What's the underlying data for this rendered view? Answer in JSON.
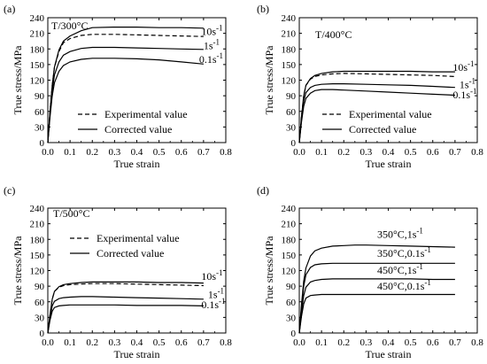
{
  "chart_data": [
    {
      "panel_label": "(a)",
      "type": "line",
      "title": "T/300°C",
      "xlabel": "True strain",
      "ylabel": "True stress/MPa",
      "xlim": [
        0.0,
        0.8
      ],
      "ylim": [
        0,
        240
      ],
      "xticks": [
        "0.0",
        "0.1",
        "0.2",
        "0.3",
        "0.4",
        "0.5",
        "0.6",
        "0.7",
        "0.8"
      ],
      "yticks": [
        "0",
        "30",
        "60",
        "90",
        "120",
        "150",
        "180",
        "210",
        "240"
      ],
      "legend": [
        {
          "label": "Experimental value",
          "style": "dashed"
        },
        {
          "label": "Corrected value",
          "style": "solid"
        }
      ],
      "legend_position": "lower-center",
      "series": [
        {
          "name": "10s-1",
          "style": "dashed",
          "x": [
            0,
            0.01,
            0.02,
            0.03,
            0.05,
            0.07,
            0.1,
            0.15,
            0.2,
            0.3,
            0.4,
            0.5,
            0.6,
            0.7
          ],
          "y": [
            0,
            60,
            110,
            145,
            175,
            192,
            200,
            206,
            208,
            208,
            207,
            206,
            205,
            204
          ]
        },
        {
          "name": "10s-1",
          "style": "solid",
          "x": [
            0,
            0.01,
            0.02,
            0.03,
            0.05,
            0.07,
            0.1,
            0.15,
            0.2,
            0.3,
            0.4,
            0.5,
            0.6,
            0.7
          ],
          "y": [
            0,
            60,
            110,
            145,
            178,
            195,
            205,
            215,
            221,
            222,
            222,
            221,
            221,
            220
          ]
        },
        {
          "name": "1s-1",
          "style": "solid",
          "x": [
            0,
            0.01,
            0.02,
            0.03,
            0.05,
            0.07,
            0.1,
            0.15,
            0.2,
            0.3,
            0.4,
            0.5,
            0.6,
            0.7
          ],
          "y": [
            0,
            55,
            100,
            130,
            155,
            168,
            175,
            181,
            183,
            183,
            182,
            181,
            180,
            179
          ]
        },
        {
          "name": "0.1s-1",
          "style": "solid",
          "x": [
            0,
            0.01,
            0.02,
            0.03,
            0.05,
            0.07,
            0.1,
            0.15,
            0.2,
            0.3,
            0.4,
            0.5,
            0.6,
            0.7
          ],
          "y": [
            0,
            50,
            90,
            115,
            137,
            148,
            155,
            160,
            162,
            162,
            161,
            159,
            155,
            151
          ]
        }
      ],
      "annotations": [
        {
          "text": "10s",
          "sup": "-1",
          "x": 0.69,
          "y": 207
        },
        {
          "text": "1s",
          "sup": "-1",
          "x": 0.7,
          "y": 180
        },
        {
          "text": "0.1s",
          "sup": "-1",
          "x": 0.68,
          "y": 153
        }
      ]
    },
    {
      "panel_label": "(b)",
      "type": "line",
      "title": "T/400°C",
      "xlabel": "True strain",
      "ylabel": "True stress/MPa",
      "xlim": [
        0.0,
        0.8
      ],
      "ylim": [
        0,
        240
      ],
      "xticks": [
        "0.0",
        "0.1",
        "0.2",
        "0.3",
        "0.4",
        "0.5",
        "0.6",
        "0.7",
        "0.8"
      ],
      "yticks": [
        "0",
        "30",
        "60",
        "90",
        "120",
        "150",
        "180",
        "210",
        "240"
      ],
      "legend": [
        {
          "label": "Experimental value",
          "style": "dashed"
        },
        {
          "label": "Corrected value",
          "style": "solid"
        }
      ],
      "legend_position": "lower-center",
      "series": [
        {
          "name": "10s-1",
          "style": "dashed",
          "x": [
            0,
            0.01,
            0.02,
            0.03,
            0.05,
            0.07,
            0.1,
            0.15,
            0.2,
            0.3,
            0.4,
            0.5,
            0.6,
            0.7
          ],
          "y": [
            0,
            50,
            90,
            110,
            122,
            127,
            130,
            132,
            133,
            132,
            131,
            130,
            129,
            127
          ]
        },
        {
          "name": "10s-1",
          "style": "solid",
          "x": [
            0,
            0.01,
            0.02,
            0.03,
            0.05,
            0.07,
            0.1,
            0.15,
            0.2,
            0.3,
            0.4,
            0.5,
            0.6,
            0.7
          ],
          "y": [
            0,
            50,
            90,
            110,
            123,
            129,
            133,
            136,
            137,
            137,
            137,
            137,
            136,
            136
          ]
        },
        {
          "name": "1s-1",
          "style": "solid",
          "x": [
            0,
            0.01,
            0.02,
            0.03,
            0.05,
            0.07,
            0.1,
            0.15,
            0.2,
            0.3,
            0.4,
            0.5,
            0.6,
            0.7
          ],
          "y": [
            0,
            45,
            80,
            96,
            106,
            110,
            112,
            113,
            113,
            112,
            111,
            110,
            108,
            106
          ]
        },
        {
          "name": "0.1s-1",
          "style": "solid",
          "x": [
            0,
            0.01,
            0.02,
            0.03,
            0.05,
            0.07,
            0.1,
            0.15,
            0.2,
            0.3,
            0.4,
            0.5,
            0.6,
            0.7
          ],
          "y": [
            0,
            40,
            70,
            85,
            95,
            100,
            102,
            102,
            101,
            99,
            97,
            95,
            93,
            91
          ]
        }
      ],
      "annotations": [
        {
          "text": "10s",
          "sup": "-1",
          "x": 0.69,
          "y": 138
        },
        {
          "text": "1s",
          "sup": "-1",
          "x": 0.72,
          "y": 105
        },
        {
          "text": "0.1s",
          "sup": "-1",
          "x": 0.69,
          "y": 85
        }
      ]
    },
    {
      "panel_label": "(c)",
      "type": "line",
      "title": "T/500°C",
      "xlabel": "True strain",
      "ylabel": "True stress/MPa",
      "xlim": [
        0.0,
        0.8
      ],
      "ylim": [
        0,
        240
      ],
      "xticks": [
        "0.0",
        "0.1",
        "0.2",
        "0.3",
        "0.4",
        "0.5",
        "0.6",
        "0.7",
        "0.8"
      ],
      "yticks": [
        "0",
        "30",
        "60",
        "90",
        "120",
        "150",
        "180",
        "210",
        "240"
      ],
      "legend": [
        {
          "label": "Experimental value",
          "style": "dashed"
        },
        {
          "label": "Corrected value",
          "style": "solid"
        }
      ],
      "legend_position": "upper-center",
      "series": [
        {
          "name": "10s-1",
          "style": "dashed",
          "x": [
            0,
            0.01,
            0.02,
            0.03,
            0.05,
            0.07,
            0.1,
            0.15,
            0.2,
            0.3,
            0.4,
            0.5,
            0.6,
            0.7
          ],
          "y": [
            0,
            35,
            65,
            80,
            88,
            91,
            93,
            94,
            95,
            95,
            94,
            93,
            92,
            91
          ]
        },
        {
          "name": "10s-1",
          "style": "solid",
          "x": [
            0,
            0.01,
            0.02,
            0.03,
            0.05,
            0.07,
            0.1,
            0.15,
            0.2,
            0.3,
            0.4,
            0.5,
            0.6,
            0.7
          ],
          "y": [
            0,
            35,
            65,
            80,
            89,
            93,
            95,
            97,
            98,
            98,
            98,
            97,
            97,
            96
          ]
        },
        {
          "name": "1s-1",
          "style": "solid",
          "x": [
            0,
            0.01,
            0.02,
            0.03,
            0.05,
            0.07,
            0.1,
            0.15,
            0.2,
            0.3,
            0.4,
            0.5,
            0.6,
            0.7
          ],
          "y": [
            0,
            30,
            52,
            61,
            66,
            68,
            69,
            70,
            70,
            69,
            68,
            67,
            66,
            65
          ]
        },
        {
          "name": "0.1s-1",
          "style": "solid",
          "x": [
            0,
            0.01,
            0.02,
            0.03,
            0.05,
            0.07,
            0.1,
            0.15,
            0.2,
            0.3,
            0.4,
            0.5,
            0.6,
            0.7
          ],
          "y": [
            0,
            25,
            42,
            49,
            52,
            53,
            54,
            54,
            54,
            54,
            53,
            53,
            53,
            52
          ]
        }
      ],
      "annotations": [
        {
          "text": "10s",
          "sup": "-1",
          "x": 0.69,
          "y": 102
        },
        {
          "text": "1s",
          "sup": "-1",
          "x": 0.72,
          "y": 67
        },
        {
          "text": "0.1s",
          "sup": "-1",
          "x": 0.69,
          "y": 48
        }
      ]
    },
    {
      "panel_label": "(d)",
      "type": "line",
      "title": "",
      "xlabel": "True strain",
      "ylabel": "True stress/MPa",
      "xlim": [
        0.0,
        0.8
      ],
      "ylim": [
        0,
        240
      ],
      "xticks": [
        "0.0",
        "0.1",
        "0.2",
        "0.3",
        "0.4",
        "0.5",
        "0.6",
        "0.7",
        "0.8"
      ],
      "yticks": [
        "0",
        "30",
        "60",
        "90",
        "120",
        "150",
        "180",
        "210",
        "240"
      ],
      "legend": [],
      "series": [
        {
          "name": "350°C,1s-1",
          "style": "solid",
          "x": [
            0,
            0.01,
            0.02,
            0.03,
            0.05,
            0.07,
            0.1,
            0.15,
            0.2,
            0.25,
            0.3,
            0.4,
            0.5,
            0.6,
            0.7
          ],
          "y": [
            0,
            55,
            100,
            125,
            148,
            158,
            163,
            167,
            168,
            169,
            169,
            168,
            167,
            166,
            165
          ]
        },
        {
          "name": "350°C,0.1s-1",
          "style": "solid",
          "x": [
            0,
            0.01,
            0.02,
            0.03,
            0.05,
            0.07,
            0.1,
            0.15,
            0.2,
            0.3,
            0.4,
            0.5,
            0.6,
            0.7
          ],
          "y": [
            0,
            50,
            90,
            112,
            126,
            131,
            133,
            134,
            134,
            134,
            134,
            134,
            134,
            134
          ]
        },
        {
          "name": "450°C,1s-1",
          "style": "solid",
          "x": [
            0,
            0.01,
            0.02,
            0.03,
            0.05,
            0.07,
            0.1,
            0.15,
            0.2,
            0.3,
            0.4,
            0.5,
            0.6,
            0.7
          ],
          "y": [
            0,
            40,
            72,
            88,
            98,
            101,
            103,
            104,
            104,
            104,
            104,
            104,
            103,
            103
          ]
        },
        {
          "name": "450°C,0.1s-1",
          "style": "solid",
          "x": [
            0,
            0.01,
            0.02,
            0.03,
            0.05,
            0.07,
            0.1,
            0.15,
            0.2,
            0.3,
            0.4,
            0.5,
            0.6,
            0.7
          ],
          "y": [
            0,
            32,
            56,
            67,
            72,
            73,
            74,
            74,
            74,
            74,
            74,
            74,
            74,
            74
          ]
        }
      ],
      "annotations": [
        {
          "text": "350°C,1s",
          "sup": "-1",
          "x": 0.35,
          "y": 183
        },
        {
          "text": "350°C,0.1s",
          "sup": "-1",
          "x": 0.35,
          "y": 146
        },
        {
          "text": "450°C,1s",
          "sup": "-1",
          "x": 0.35,
          "y": 114
        },
        {
          "text": "450°C,0.1s",
          "sup": "-1",
          "x": 0.35,
          "y": 83
        }
      ]
    }
  ]
}
